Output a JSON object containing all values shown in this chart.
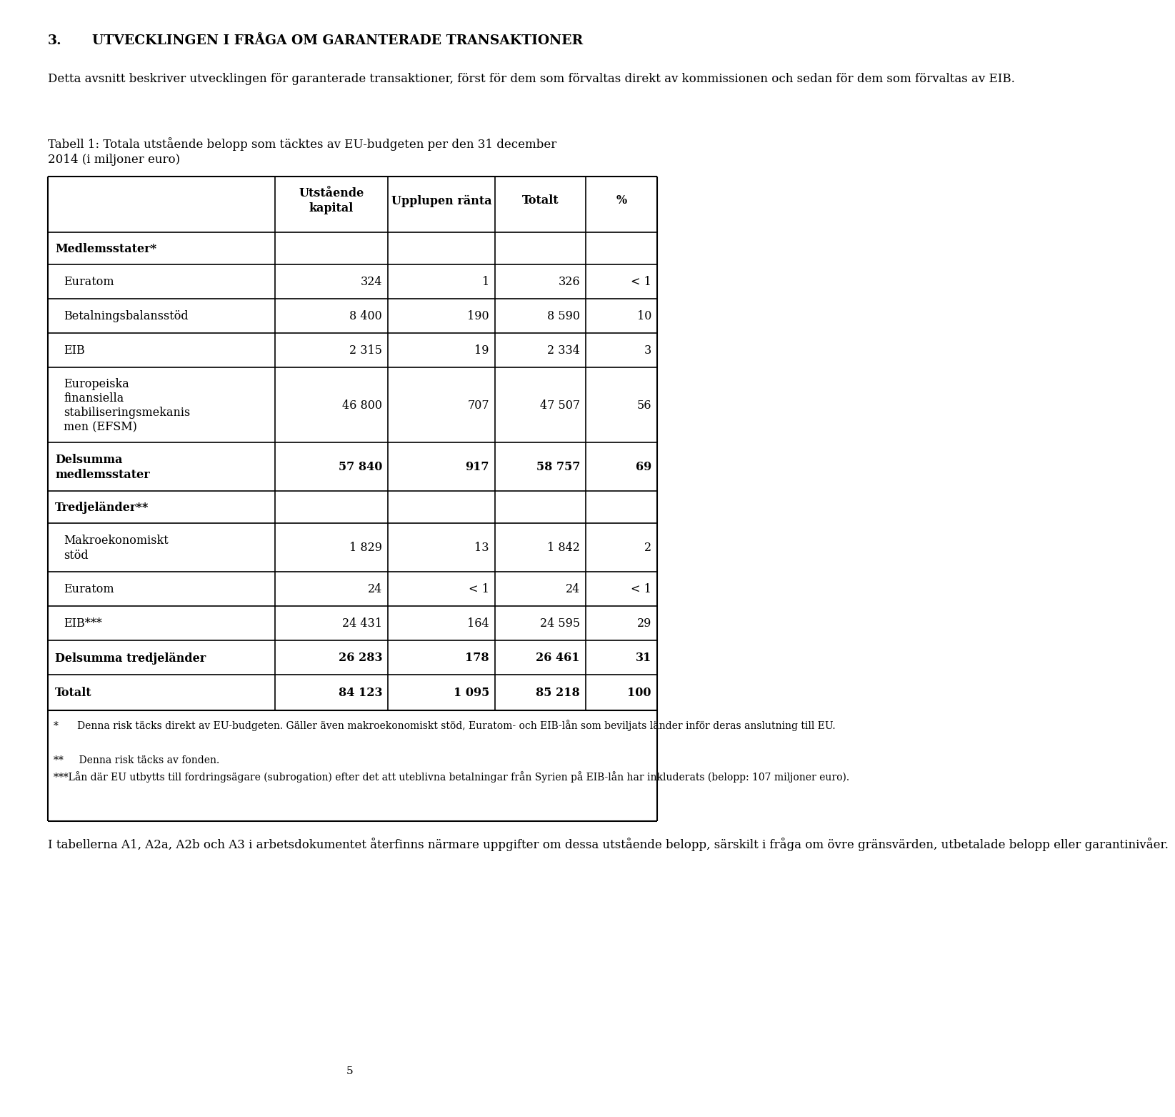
{
  "heading_number": "3.",
  "heading_text": "UTVECKLINGEN I FRÅGA OM GARANTERADE TRANSAKTIONER",
  "intro_text": "Detta avsnitt beskriver utvecklingen för garanterade transaktioner, först för dem som förvaltas direkt av kommissionen och sedan för dem som förvaltas av EIB.",
  "table_title_line1": "Tabell 1: Totala utstående belopp som täcktes av EU-budgeten per den 31 december",
  "table_title_line2": "2014 (i miljoner euro)",
  "col_headers": [
    "Utstående\nkapital",
    "Upplupen ränta",
    "Totalt",
    "%"
  ],
  "footnote1": "*      Denna risk täcks direkt av EU-budgeten. Gäller även makroekonomiskt stöd, Euratom- och EIB-lån som beviljats länder inför deras anslutning till EU.",
  "footnote2": "**     Denna risk täcks av fonden.",
  "footnote3": "***Lån där EU utbytts till fordringsägare (subrogation) efter det att uteblivna betalningar från Syrien på EIB-lån har inkluderats (belopp: 107 miljoner euro).",
  "closing_text": "I tabellerna A1, A2a, A2b och A3 i arbetsdokumentet återfinns närmare uppgifter om dessa utstående belopp, särskilt i fråga om övre gränsvärden, utbetalade belopp eller garantinivåer.",
  "page_number": "5",
  "bg_color": "#ffffff",
  "text_color": "#000000"
}
